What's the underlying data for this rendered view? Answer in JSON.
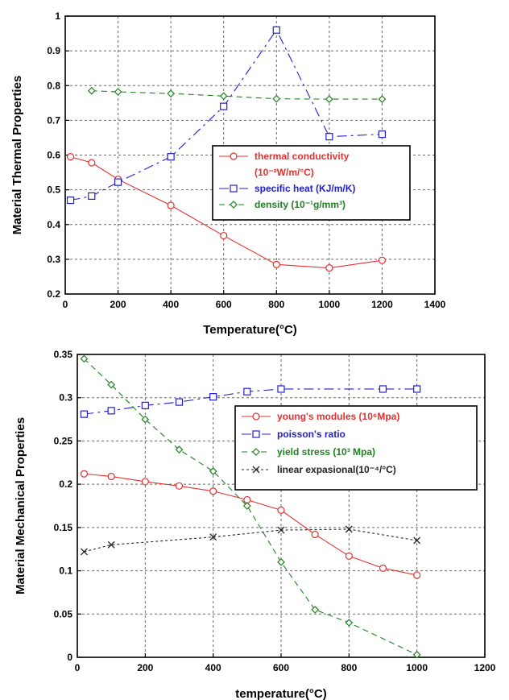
{
  "chart_data": [
    {
      "type": "line",
      "xlabel": "Temperature(°C)",
      "ylabel": "Material Thermal Properties",
      "xlim": [
        0,
        1400
      ],
      "ylim": [
        0.2,
        1
      ],
      "xticks": [
        0,
        200,
        400,
        600,
        800,
        1000,
        1200,
        1400
      ],
      "xtick_labels": [
        "0",
        "200",
        "400",
        "600",
        "800",
        "1000",
        "1200",
        "1400"
      ],
      "yticks": [
        0.2,
        0.3,
        0.4,
        0.5,
        0.6,
        0.7,
        0.8,
        0.9,
        1
      ],
      "ytick_labels": [
        "0.2",
        "0.3",
        "0.4",
        "0.5",
        "0.6",
        "0.7",
        "0.8",
        "0.9",
        "1"
      ],
      "grid": true,
      "legend_position": "center-right",
      "series": [
        {
          "name": "thermal conductivity (10⁻²W/m/°C)",
          "legend_lines": [
            "thermal conductivity",
            "(10⁻²W/m/°C)"
          ],
          "color": "#e53030",
          "marker": "circle",
          "dash": "",
          "x": [
            20,
            100,
            200,
            400,
            600,
            800,
            1000,
            1200
          ],
          "y": [
            0.595,
            0.578,
            0.53,
            0.455,
            0.368,
            0.285,
            0.275,
            0.297
          ]
        },
        {
          "name": "specific heat (KJ/m/K)",
          "legend_lines": [
            "specific heat (KJ/m/K)"
          ],
          "color": "#2020d0",
          "marker": "square",
          "dash": "12 5 3 5",
          "x": [
            20,
            100,
            200,
            400,
            600,
            800,
            1000,
            1200
          ],
          "y": [
            0.47,
            0.482,
            0.522,
            0.595,
            0.74,
            0.96,
            0.653,
            0.66
          ]
        },
        {
          "name": "density (10⁻¹g/mm³)",
          "legend_lines": [
            "density (10⁻¹g/mm³)"
          ],
          "color": "#208020",
          "marker": "diamond",
          "dash": "7 5",
          "x": [
            100,
            200,
            400,
            600,
            800,
            1000,
            1200
          ],
          "y": [
            0.785,
            0.782,
            0.777,
            0.77,
            0.762,
            0.761,
            0.761
          ]
        }
      ]
    },
    {
      "type": "line",
      "xlabel": "temperature(°C)",
      "ylabel": "Material Mechanical Properties",
      "xlim": [
        0,
        1200
      ],
      "ylim": [
        0,
        0.35
      ],
      "xticks": [
        0,
        200,
        400,
        600,
        800,
        1000,
        1200
      ],
      "xtick_labels": [
        "0",
        "200",
        "400",
        "600",
        "800",
        "1000",
        "1200"
      ],
      "yticks": [
        0,
        0.05,
        0.1,
        0.15,
        0.2,
        0.25,
        0.3,
        0.35
      ],
      "ytick_labels": [
        "0",
        "0.05",
        "0.1",
        "0.15",
        "0.2",
        "0.25",
        "0.3",
        "0.35"
      ],
      "grid": true,
      "legend_position": "upper-right",
      "series": [
        {
          "name": "young's modules (10⁶Mpa)",
          "legend_lines": [
            "young's modules (10⁶Mpa)"
          ],
          "color": "#e53030",
          "marker": "circle",
          "dash": "",
          "x": [
            20,
            100,
            200,
            300,
            400,
            500,
            600,
            700,
            800,
            900,
            1000
          ],
          "y": [
            0.212,
            0.209,
            0.203,
            0.198,
            0.192,
            0.182,
            0.17,
            0.142,
            0.117,
            0.103,
            0.095
          ]
        },
        {
          "name": "poisson's ratio",
          "legend_lines": [
            "poisson's ratio"
          ],
          "color": "#2020d0",
          "marker": "square",
          "dash": "12 5 3 5",
          "x": [
            20,
            100,
            200,
            300,
            400,
            500,
            600,
            900,
            1000
          ],
          "y": [
            0.281,
            0.285,
            0.291,
            0.295,
            0.301,
            0.307,
            0.31,
            0.31,
            0.31
          ]
        },
        {
          "name": "yield stress (10³ Mpa)",
          "legend_lines": [
            "yield stress (10³ Mpa)"
          ],
          "color": "#208020",
          "marker": "diamond",
          "dash": "7 5",
          "x": [
            20,
            100,
            200,
            300,
            400,
            500,
            600,
            700,
            800,
            1000
          ],
          "y": [
            0.345,
            0.315,
            0.275,
            0.24,
            0.215,
            0.175,
            0.11,
            0.055,
            0.04,
            0.003
          ]
        },
        {
          "name": "linear expasional(10⁻⁴/°C)",
          "legend_lines": [
            "linear expasional(10⁻⁴/°C)"
          ],
          "color": "#222222",
          "marker": "cross",
          "dash": "3 3",
          "x": [
            20,
            100,
            400,
            600,
            800,
            1000
          ],
          "y": [
            0.122,
            0.13,
            0.139,
            0.147,
            0.148,
            0.135
          ]
        }
      ]
    }
  ]
}
